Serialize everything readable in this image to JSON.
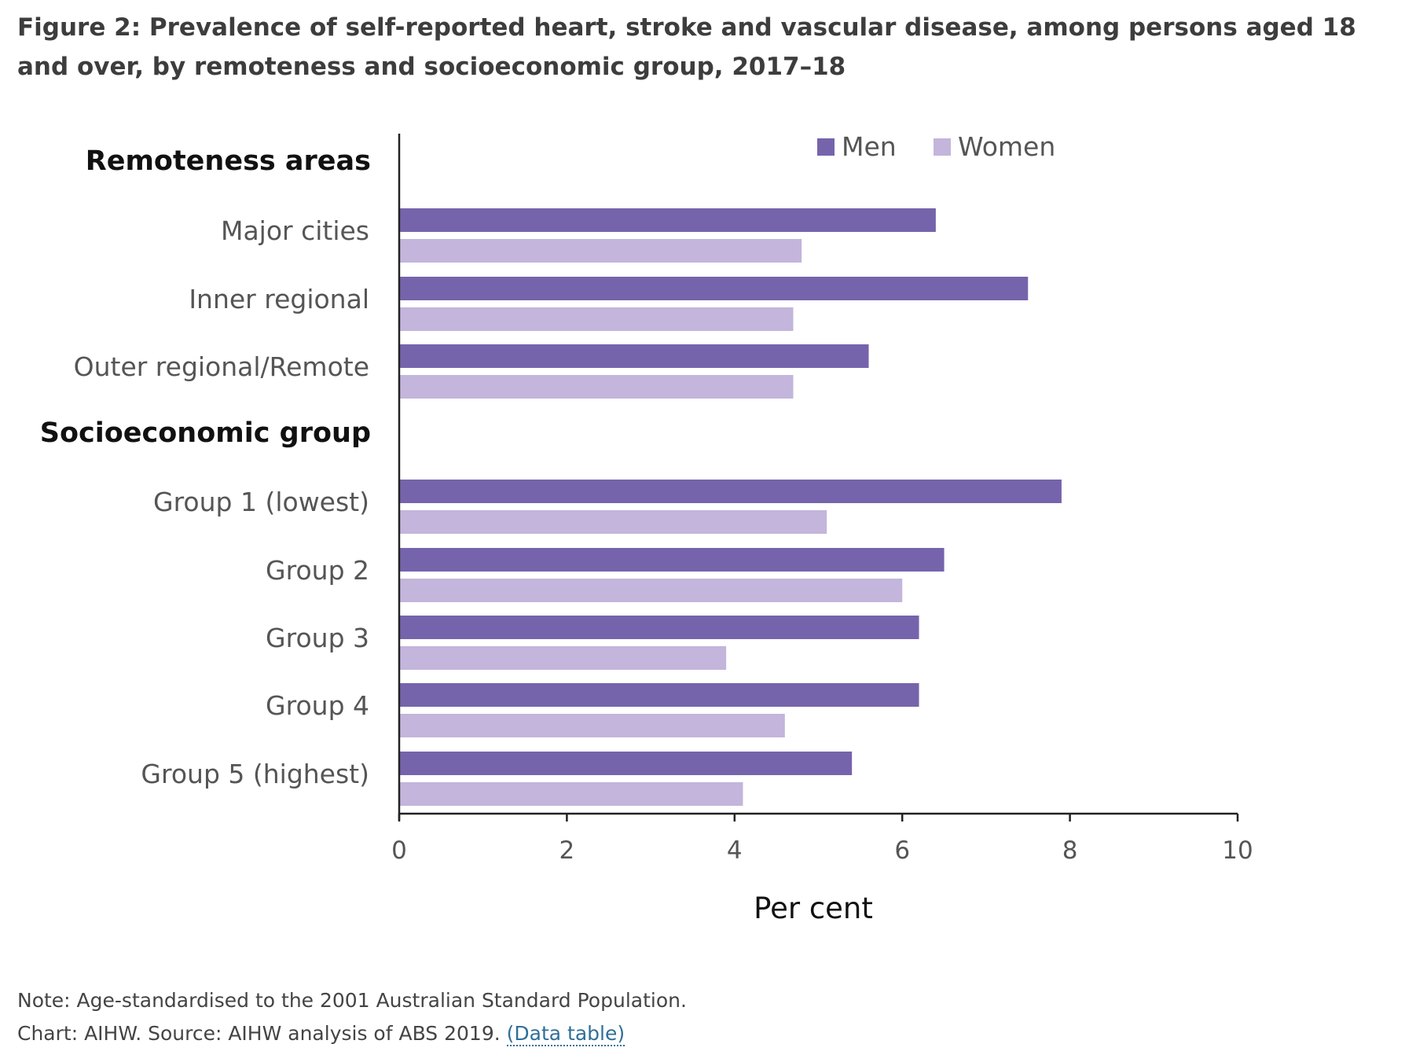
{
  "figure": {
    "title": "Figure 2: Prevalence of self-reported heart, stroke and vascular disease, among persons aged 18 and over, by remoteness and socioeconomic group, 2017–18"
  },
  "chart_data": {
    "type": "bar",
    "orientation": "horizontal",
    "xlabel": "Per cent",
    "xlim": [
      0,
      10
    ],
    "xticks": [
      "0",
      "2",
      "4",
      "6",
      "8",
      "10"
    ],
    "legend": {
      "placement": "top-right",
      "entries": [
        "Men",
        "Women"
      ]
    },
    "series": [
      {
        "name": "Men",
        "color": "#7564ab"
      },
      {
        "name": "Women",
        "color": "#c3b5db"
      }
    ],
    "groups": [
      {
        "heading": "Remoteness areas",
        "categories": [
          {
            "label": "Major cities",
            "values": [
              6.4,
              4.8
            ]
          },
          {
            "label": "Inner regional",
            "values": [
              7.5,
              4.7
            ]
          },
          {
            "label": "Outer regional/Remote",
            "values": [
              5.6,
              4.7
            ]
          }
        ]
      },
      {
        "heading": "Socioeconomic group",
        "categories": [
          {
            "label": "Group 1 (lowest)",
            "values": [
              7.9,
              5.1
            ]
          },
          {
            "label": "Group 2",
            "values": [
              6.5,
              6.0
            ]
          },
          {
            "label": "Group 3",
            "values": [
              6.2,
              3.9
            ]
          },
          {
            "label": "Group 4",
            "values": [
              6.2,
              4.6
            ]
          },
          {
            "label": "Group 5 (highest)",
            "values": [
              5.4,
              4.1
            ]
          }
        ]
      }
    ]
  },
  "footnotes": {
    "note": "Note: Age-standardised to the 2001 Australian Standard Population.",
    "source": "Chart: AIHW. Source: AIHW analysis of ABS 2019.",
    "data_link": "(Data table)"
  }
}
